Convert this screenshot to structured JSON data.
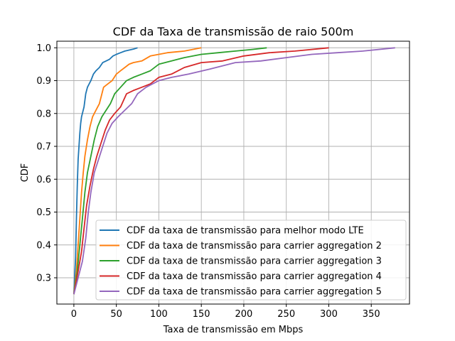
{
  "chart_data": {
    "type": "line",
    "title": "CDF da Taxa de transmissão de raio 500m",
    "xlabel": "Taxa de transmissão em Mbps",
    "ylabel": "CDF",
    "xlim": [
      -20,
      395
    ],
    "ylim": [
      0.22,
      1.02
    ],
    "xticks": [
      0,
      50,
      100,
      150,
      200,
      250,
      300,
      350
    ],
    "yticks": [
      0.3,
      0.4,
      0.5,
      0.6,
      0.7,
      0.8,
      0.9,
      1.0
    ],
    "xtick_labels": [
      "0",
      "50",
      "100",
      "150",
      "200",
      "250",
      "300",
      "350"
    ],
    "ytick_labels": [
      "0.3",
      "0.4",
      "0.5",
      "0.6",
      "0.7",
      "0.8",
      "0.9",
      "1.0"
    ],
    "grid": true,
    "legend_position": "lower-right",
    "series": [
      {
        "name": "CDF da taxa de transmissão para melhor modo LTE",
        "color": "#1f77b4",
        "x": [
          0,
          2,
          3,
          4,
          5,
          6,
          7,
          8,
          9,
          10,
          12,
          14,
          16,
          18,
          20,
          23,
          26,
          30,
          34,
          38,
          42,
          46,
          50,
          55,
          60,
          65,
          70,
          75
        ],
        "y": [
          0.25,
          0.36,
          0.48,
          0.58,
          0.66,
          0.7,
          0.74,
          0.77,
          0.79,
          0.8,
          0.82,
          0.86,
          0.88,
          0.89,
          0.9,
          0.92,
          0.93,
          0.94,
          0.955,
          0.96,
          0.965,
          0.975,
          0.98,
          0.985,
          0.99,
          0.993,
          0.996,
          1.0
        ]
      },
      {
        "name": "CDF da taxa de transmissão para carrier aggregation 2",
        "color": "#ff7f0e",
        "x": [
          0,
          3,
          5,
          7,
          9,
          11,
          13,
          16,
          19,
          22,
          26,
          30,
          35,
          40,
          45,
          50,
          55,
          60,
          65,
          70,
          80,
          90,
          100,
          110,
          130,
          150
        ],
        "y": [
          0.25,
          0.32,
          0.4,
          0.48,
          0.56,
          0.62,
          0.67,
          0.72,
          0.76,
          0.79,
          0.81,
          0.83,
          0.88,
          0.89,
          0.9,
          0.92,
          0.93,
          0.94,
          0.95,
          0.955,
          0.96,
          0.975,
          0.98,
          0.985,
          0.99,
          1.0
        ]
      },
      {
        "name": "CDF da taxa de transmissão para carrier aggregation 3",
        "color": "#2ca02c",
        "x": [
          0,
          4,
          7,
          10,
          13,
          16,
          20,
          24,
          28,
          33,
          38,
          43,
          48,
          55,
          62,
          70,
          80,
          90,
          100,
          115,
          130,
          150,
          170,
          190,
          210,
          227
        ],
        "y": [
          0.25,
          0.32,
          0.4,
          0.48,
          0.56,
          0.62,
          0.67,
          0.72,
          0.76,
          0.79,
          0.81,
          0.83,
          0.86,
          0.88,
          0.9,
          0.91,
          0.92,
          0.93,
          0.95,
          0.96,
          0.97,
          0.98,
          0.985,
          0.99,
          0.995,
          1.0
        ]
      },
      {
        "name": "CDF da taxa de transmissão para carrier aggregation 4",
        "color": "#d62728",
        "x": [
          0,
          5,
          9,
          12,
          15,
          19,
          23,
          27,
          32,
          37,
          42,
          48,
          55,
          62,
          70,
          80,
          90,
          100,
          115,
          130,
          150,
          175,
          200,
          230,
          260,
          300
        ],
        "y": [
          0.25,
          0.32,
          0.38,
          0.45,
          0.52,
          0.58,
          0.63,
          0.67,
          0.71,
          0.75,
          0.78,
          0.8,
          0.82,
          0.86,
          0.87,
          0.88,
          0.89,
          0.91,
          0.92,
          0.94,
          0.955,
          0.96,
          0.975,
          0.985,
          0.99,
          1.0
        ]
      },
      {
        "name": "CDF da taxa de transmissão para carrier aggregation 5",
        "color": "#9467bd",
        "x": [
          0,
          5,
          10,
          14,
          17,
          20,
          24,
          29,
          34,
          39,
          45,
          52,
          60,
          68,
          75,
          85,
          100,
          115,
          135,
          160,
          190,
          220,
          250,
          280,
          310,
          340,
          378
        ],
        "y": [
          0.25,
          0.3,
          0.35,
          0.42,
          0.5,
          0.56,
          0.62,
          0.66,
          0.7,
          0.74,
          0.77,
          0.79,
          0.81,
          0.83,
          0.86,
          0.88,
          0.9,
          0.91,
          0.92,
          0.935,
          0.955,
          0.96,
          0.97,
          0.98,
          0.985,
          0.99,
          1.0
        ]
      }
    ]
  }
}
